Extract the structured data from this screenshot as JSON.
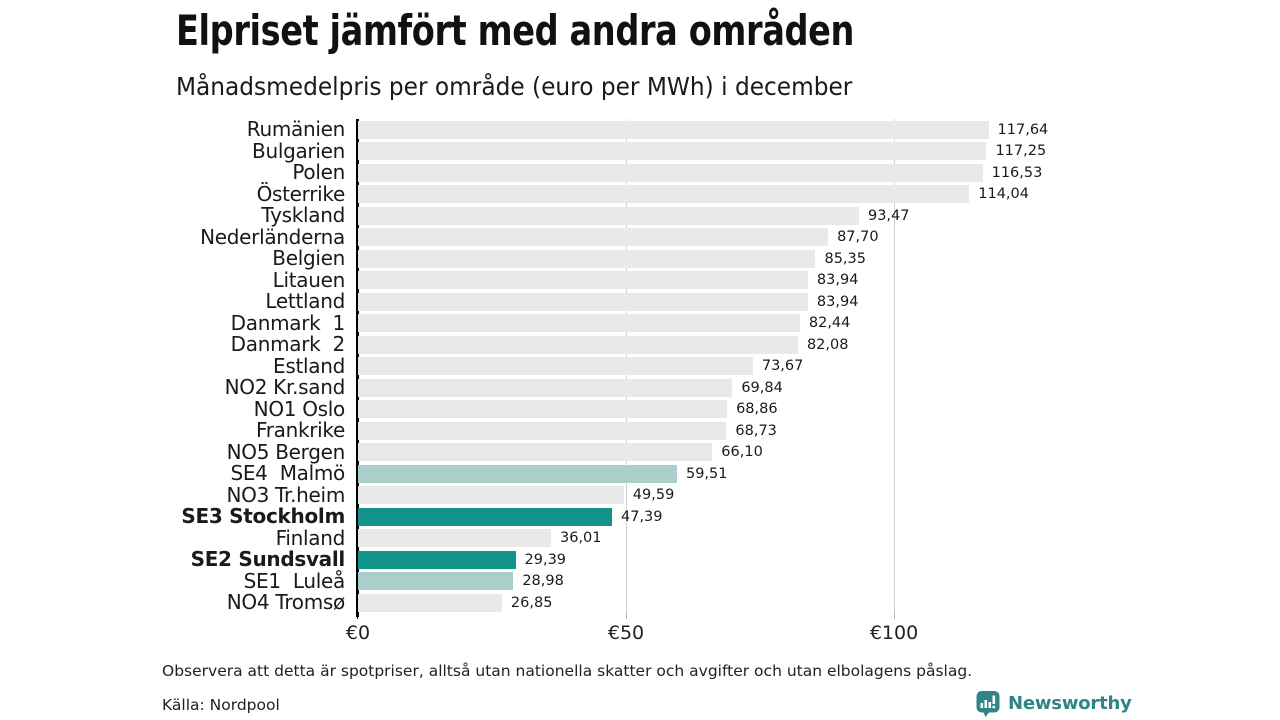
{
  "header": {
    "title": "Elpriset jämfört med andra områden",
    "subtitle": "Månadsmedelpris per område (euro per MWh) i december"
  },
  "footer": {
    "note": "Observera att detta är spotpriser, alltså utan nationella skatter och avgifter och utan elbolagens påslag.",
    "source": "Källa: Nordpool",
    "branding": {
      "name": "Newsworthy",
      "icon": "newsworthy-chart-bubble-icon",
      "color": "#2e8486"
    }
  },
  "colors": {
    "bar_default": "#e9e9e9",
    "bar_highlight_dark": "#13948b",
    "bar_highlight_light": "#a8cfc9",
    "axis": "#000000",
    "gridline": "#d2d2d2"
  },
  "chart_data": {
    "type": "bar",
    "orientation": "horizontal",
    "title": "Elpriset jämfört med andra områden",
    "subtitle": "Månadsmedelpris per område (euro per MWh) i december",
    "xlabel": "",
    "ylabel": "",
    "xlim": [
      0,
      135
    ],
    "grid": "vertical gridlines at 50 and 100, drawn behind bars",
    "legend": "none",
    "value_format": "decimal comma, euro per MWh",
    "x_ticks": [
      {
        "label": "€0",
        "value": 0
      },
      {
        "label": "€50",
        "value": 50
      },
      {
        "label": "€100",
        "value": 100
      }
    ],
    "categories": [
      "Rumänien",
      "Bulgarien",
      "Polen",
      "Österrike",
      "Tyskland",
      "Nederländerna",
      "Belgien",
      "Litauen",
      "Lettland",
      "Danmark  1",
      "Danmark  2",
      "Estland",
      "NO2 Kr.sand",
      "NO1 Oslo",
      "Frankrike",
      "NO5 Bergen",
      "SE4  Malmö",
      "NO3 Tr.heim",
      "SE3 Stockholm",
      "Finland",
      "SE2 Sundsvall",
      "SE1  Luleå",
      "NO4 Tromsø"
    ],
    "values": [
      117.64,
      117.25,
      116.53,
      114.04,
      93.47,
      87.7,
      85.35,
      83.94,
      83.94,
      82.44,
      82.08,
      73.67,
      69.84,
      68.86,
      68.73,
      66.1,
      59.51,
      49.59,
      47.39,
      36.01,
      29.39,
      28.98,
      26.85
    ],
    "rows": [
      {
        "label": "Rumänien",
        "value": 117.64,
        "display": "117,64",
        "style": "default",
        "bold": false
      },
      {
        "label": "Bulgarien",
        "value": 117.25,
        "display": "117,25",
        "style": "default",
        "bold": false
      },
      {
        "label": "Polen",
        "value": 116.53,
        "display": "116,53",
        "style": "default",
        "bold": false
      },
      {
        "label": "Österrike",
        "value": 114.04,
        "display": "114,04",
        "style": "default",
        "bold": false
      },
      {
        "label": "Tyskland",
        "value": 93.47,
        "display": "93,47",
        "style": "default",
        "bold": false
      },
      {
        "label": "Nederländerna",
        "value": 87.7,
        "display": "87,70",
        "style": "default",
        "bold": false
      },
      {
        "label": "Belgien",
        "value": 85.35,
        "display": "85,35",
        "style": "default",
        "bold": false
      },
      {
        "label": "Litauen",
        "value": 83.94,
        "display": "83,94",
        "style": "default",
        "bold": false
      },
      {
        "label": "Lettland",
        "value": 83.94,
        "display": "83,94",
        "style": "default",
        "bold": false
      },
      {
        "label": "Danmark  1",
        "value": 82.44,
        "display": "82,44",
        "style": "default",
        "bold": false
      },
      {
        "label": "Danmark  2",
        "value": 82.08,
        "display": "82,08",
        "style": "default",
        "bold": false
      },
      {
        "label": "Estland",
        "value": 73.67,
        "display": "73,67",
        "style": "default",
        "bold": false
      },
      {
        "label": "NO2 Kr.sand",
        "value": 69.84,
        "display": "69,84",
        "style": "default",
        "bold": false
      },
      {
        "label": "NO1 Oslo",
        "value": 68.86,
        "display": "68,86",
        "style": "default",
        "bold": false
      },
      {
        "label": "Frankrike",
        "value": 68.73,
        "display": "68,73",
        "style": "default",
        "bold": false
      },
      {
        "label": "NO5 Bergen",
        "value": 66.1,
        "display": "66,10",
        "style": "default",
        "bold": false
      },
      {
        "label": "SE4  Malmö",
        "value": 59.51,
        "display": "59,51",
        "style": "light",
        "bold": false
      },
      {
        "label": "NO3 Tr.heim",
        "value": 49.59,
        "display": "49,59",
        "style": "default",
        "bold": false
      },
      {
        "label": "SE3 Stockholm",
        "value": 47.39,
        "display": "47,39",
        "style": "dark",
        "bold": true
      },
      {
        "label": "Finland",
        "value": 36.01,
        "display": "36,01",
        "style": "default",
        "bold": false
      },
      {
        "label": "SE2 Sundsvall",
        "value": 29.39,
        "display": "29,39",
        "style": "dark",
        "bold": true
      },
      {
        "label": "SE1  Luleå",
        "value": 28.98,
        "display": "28,98",
        "style": "light",
        "bold": false
      },
      {
        "label": "NO4 Tromsø",
        "value": 26.85,
        "display": "26,85",
        "style": "default",
        "bold": false
      }
    ]
  }
}
